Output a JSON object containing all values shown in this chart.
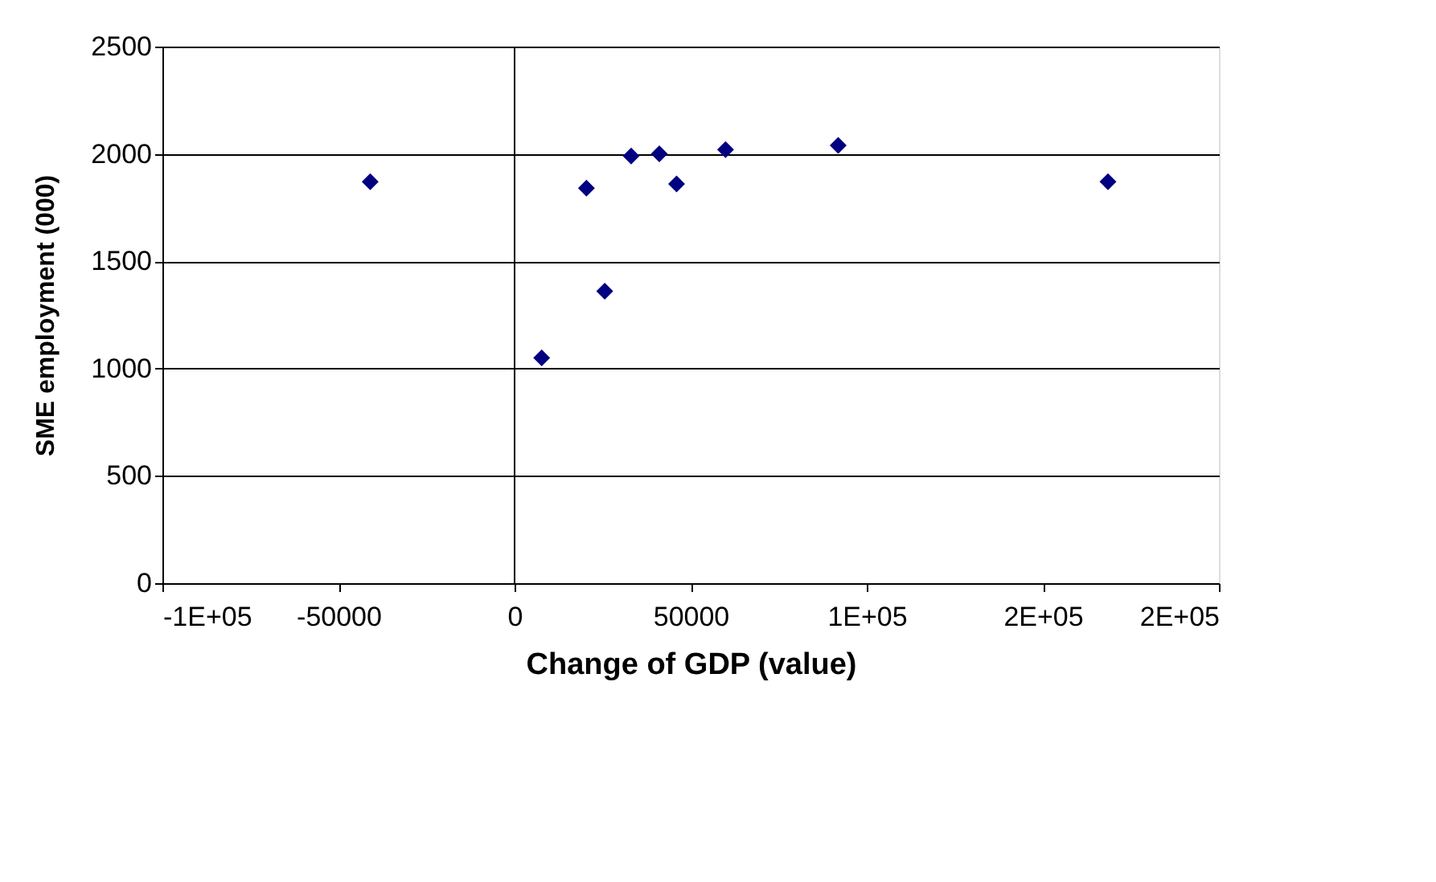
{
  "chart_data": {
    "type": "scatter",
    "xlabel": "Change of GDP (value)",
    "ylabel": "SME employment (000)",
    "x": [
      -41000,
      7700,
      20400,
      25600,
      33100,
      41100,
      46000,
      59900,
      91900,
      168500
    ],
    "series": [
      {
        "color": "#000080",
        "values": [
          1870,
          1050,
          1840,
          1360,
          1990,
          2000,
          1860,
          2020,
          2040,
          1870
        ]
      }
    ],
    "xlim": [
      -100000,
      200000
    ],
    "xticks": [
      {
        "value": -100000,
        "label": "-1E+05"
      },
      {
        "value": -50000,
        "label": "-50000"
      },
      0,
      50000,
      {
        "value": 100000,
        "label": "1E+05"
      },
      {
        "value": 150000,
        "label": "2E+05"
      },
      {
        "value": 200000,
        "label": "2E+05"
      }
    ],
    "ylim": [
      0,
      2500
    ],
    "yticks": [
      0,
      500,
      1000,
      1500,
      2000,
      2500
    ],
    "grid": "y",
    "marker": "diamond",
    "ref_lines": [
      {
        "axis": "x",
        "value": 0,
        "color": "#000000"
      }
    ]
  }
}
